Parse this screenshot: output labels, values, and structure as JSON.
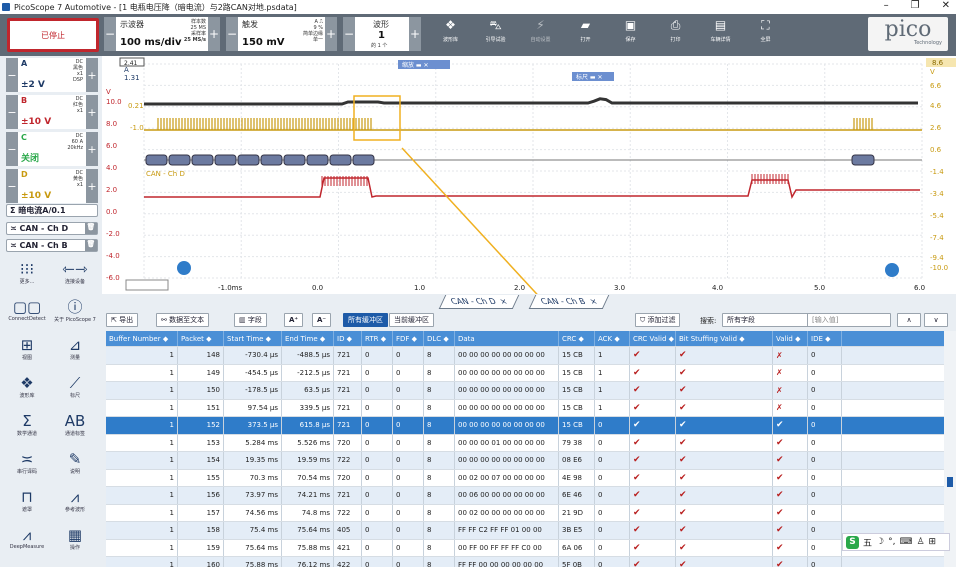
{
  "window": {
    "title": "PicoScope 7 Automotive - [1 电瓶电压降（暗电流）与2路CAN对地.psdata]"
  },
  "toolbar": {
    "stop_label": "已停止",
    "timebase": {
      "label": "示波器",
      "value": "100 ms/div",
      "s1": "样本数",
      "s2": "25 MS",
      "s3": "采样率",
      "s4": "25 MS/s"
    },
    "trigger": {
      "label": "触发",
      "value": "150 mV",
      "s1": "A",
      "s2": "9 %",
      "s3": "简单边缘",
      "s4": "单一"
    },
    "waveform": {
      "label": "波形",
      "value": "1",
      "sub": "的 1 个"
    },
    "icons": [
      {
        "icon": "library-icon",
        "label": "波形库"
      },
      {
        "icon": "car-icon",
        "label": "引导试验"
      },
      {
        "icon": "wand-icon",
        "label": "自动设置"
      },
      {
        "icon": "folder-icon",
        "label": "打开"
      },
      {
        "icon": "save-icon",
        "label": "保存"
      },
      {
        "icon": "print-icon",
        "label": "打印"
      },
      {
        "icon": "report-icon",
        "label": "车辆详情"
      },
      {
        "icon": "fullscreen-icon",
        "label": "全屏"
      }
    ],
    "logo": "pico",
    "logo_sub": "Technology"
  },
  "channels": [
    {
      "name": "A",
      "range": "±2 V",
      "s1": "DC",
      "s2": "黑色",
      "s3": "x1",
      "s4": "DSP",
      "color": "#1e3a66"
    },
    {
      "name": "B",
      "range": "±10 V",
      "s1": "DC",
      "s2": "红色",
      "s3": "x1",
      "s4": "",
      "color": "#c0262d"
    },
    {
      "name": "C",
      "range": "关闭",
      "s1": "DC",
      "s2": "60 A",
      "s3": "20kHz",
      "s4": "",
      "color": "#2aa84a"
    },
    {
      "name": "D",
      "range": "±10 V",
      "s1": "DC",
      "s2": "黄色",
      "s3": "x1",
      "s4": "",
      "color": "#c89a10"
    }
  ],
  "math": [
    {
      "label": "Σ 暗电流A/0.1"
    },
    {
      "label": "≍ CAN - Ch D"
    },
    {
      "label": "≍ CAN - Ch B"
    }
  ],
  "leftnav": [
    {
      "icon": "more-icon",
      "label": "更多..."
    },
    {
      "icon": "connect-device-icon",
      "label": "连接设备"
    },
    {
      "icon": "connect-detect-icon",
      "label": "ConnectDetect"
    },
    {
      "icon": "info-icon",
      "label": "关于 PicoScope 7"
    },
    {
      "icon": "view-icon",
      "label": "视图"
    },
    {
      "icon": "measure-icon",
      "label": "测量"
    },
    {
      "icon": "waveform-library-icon",
      "label": "波形库"
    },
    {
      "icon": "ruler-icon",
      "label": "标尺"
    },
    {
      "icon": "math-channel-icon",
      "label": "数学通道"
    },
    {
      "icon": "channel-label-icon",
      "label": "通道标签"
    },
    {
      "icon": "serial-decode-icon",
      "label": "串行译码"
    },
    {
      "icon": "notes-icon",
      "label": "说明"
    },
    {
      "icon": "mask-icon",
      "label": "遮罩"
    },
    {
      "icon": "ref-waveform-icon",
      "label": "参考波形"
    },
    {
      "icon": "deepmeasure-icon",
      "label": "DeepMeasure"
    },
    {
      "icon": "action-icon",
      "label": "操作"
    }
  ],
  "plot": {
    "zoom_label": "缩放",
    "ruler_label": "标尺",
    "trigger_time_marker": "2.41",
    "right_marker": "8.6",
    "left_axis": [
      {
        "v": "A",
        "y": 0
      },
      {
        "v": "1.31",
        "y": 0
      },
      {
        "v": "V",
        "y": 0
      },
      {
        "v": "10.0",
        "y": 0
      },
      {
        "v": "8.0",
        "y": 0
      },
      {
        "v": "6.0",
        "y": 0
      },
      {
        "v": "4.0",
        "y": 0
      },
      {
        "v": "2.0",
        "y": 0
      },
      {
        "v": "0.0",
        "y": 0
      },
      {
        "v": "-2.0",
        "y": 0
      },
      {
        "v": "-4.0",
        "y": 0
      },
      {
        "v": "-6.0",
        "y": 0
      }
    ],
    "left_axis_inner": [
      "0.21",
      "-1.0"
    ],
    "right_axis": [
      "V",
      "6.6",
      "4.6",
      "2.6",
      "0.6",
      "-1.4",
      "-3.4",
      "-5.4",
      "-7.4",
      "-9.4",
      "-10.0"
    ],
    "x_ticks": [
      "-1.0ms",
      "0.0",
      "1.0",
      "2.0",
      "3.0",
      "4.0",
      "5.0",
      "6.0"
    ],
    "decode_label": "CAN - Ch D"
  },
  "tabs": [
    {
      "label": "CAN - Ch D"
    },
    {
      "label": "CAN - Ch B"
    }
  ],
  "table_toolbar": {
    "export": "导出",
    "data_to_text": "数据至文本",
    "fields": "字段",
    "all_buffers": "所有缓冲区",
    "current_buffer": "当前缓冲区",
    "add_filter": "添加过滤",
    "search_label": "搜索:",
    "search_field": "所有字段",
    "input_placeholder": "[输入值]"
  },
  "table": {
    "headers": [
      "Buffer Number ◆",
      "Packet ◆",
      "Start Time ◆",
      "End Time ◆",
      "ID ◆",
      "RTR ◆",
      "FDF ◆",
      "DLC ◆",
      "Data",
      "CRC ◆",
      "ACK ◆",
      "CRC Valid ◆",
      "Bit Stuffing Valid ◆",
      "Valid ◆",
      "IDE ◆"
    ],
    "rows": [
      [
        "1",
        "148",
        "-730.4 µs",
        "-488.5 µs",
        "721",
        "0",
        "0",
        "8",
        "00 00 00 00 00 00 00 00",
        "15 CB",
        "1",
        "✔",
        "✔",
        "✗",
        "0"
      ],
      [
        "1",
        "149",
        "-454.5 µs",
        "-212.5 µs",
        "721",
        "0",
        "0",
        "8",
        "00 00 00 00 00 00 00 00",
        "15 CB",
        "1",
        "✔",
        "✔",
        "✗",
        "0"
      ],
      [
        "1",
        "150",
        "-178.5 µs",
        "63.5 µs",
        "721",
        "0",
        "0",
        "8",
        "00 00 00 00 00 00 00 00",
        "15 CB",
        "1",
        "✔",
        "✔",
        "✗",
        "0"
      ],
      [
        "1",
        "151",
        "97.54 µs",
        "339.5 µs",
        "721",
        "0",
        "0",
        "8",
        "00 00 00 00 00 00 00 00",
        "15 CB",
        "1",
        "✔",
        "✔",
        "✗",
        "0"
      ],
      [
        "1",
        "152",
        "373.5 µs",
        "615.8 µs",
        "721",
        "0",
        "0",
        "8",
        "00 00 00 00 00 00 00 00",
        "15 CB",
        "0",
        "✔",
        "✔",
        "✔",
        "0"
      ],
      [
        "1",
        "153",
        "5.284 ms",
        "5.526 ms",
        "720",
        "0",
        "0",
        "8",
        "00 00 00 01 00 00 00 00",
        "79 38",
        "0",
        "✔",
        "✔",
        "✔",
        "0"
      ],
      [
        "1",
        "154",
        "19.35 ms",
        "19.59 ms",
        "722",
        "0",
        "0",
        "8",
        "00 00 00 00 00 00 00 00",
        "08 E6",
        "0",
        "✔",
        "✔",
        "✔",
        "0"
      ],
      [
        "1",
        "155",
        "70.3 ms",
        "70.54 ms",
        "720",
        "0",
        "0",
        "8",
        "00 02 00 07 00 00 00 00",
        "4E 98",
        "0",
        "✔",
        "✔",
        "✔",
        "0"
      ],
      [
        "1",
        "156",
        "73.97 ms",
        "74.21 ms",
        "721",
        "0",
        "0",
        "8",
        "00 06 00 00 00 00 00 00",
        "6E 46",
        "0",
        "✔",
        "✔",
        "✔",
        "0"
      ],
      [
        "1",
        "157",
        "74.56 ms",
        "74.8 ms",
        "722",
        "0",
        "0",
        "8",
        "00 02 00 00 00 00 00 00",
        "21 9D",
        "0",
        "✔",
        "✔",
        "✔",
        "0"
      ],
      [
        "1",
        "158",
        "75.4 ms",
        "75.64 ms",
        "405",
        "0",
        "0",
        "8",
        "FF FF C2 FF FF 01 00 00",
        "3B E5",
        "0",
        "✔",
        "✔",
        "✔",
        "0"
      ],
      [
        "1",
        "159",
        "75.64 ms",
        "75.88 ms",
        "421",
        "0",
        "0",
        "8",
        "00 FF 00 FF FF FF C0 00",
        "6A 06",
        "0",
        "✔",
        "✔",
        "✔",
        "0"
      ],
      [
        "1",
        "160",
        "75.88 ms",
        "76.12 ms",
        "422",
        "0",
        "0",
        "8",
        "FF FF 00 00 00 00 00 00",
        "5F 0B",
        "0",
        "✔",
        "✔",
        "✔",
        "0"
      ]
    ],
    "selected_row": 4
  },
  "ime": {
    "label": "五"
  }
}
